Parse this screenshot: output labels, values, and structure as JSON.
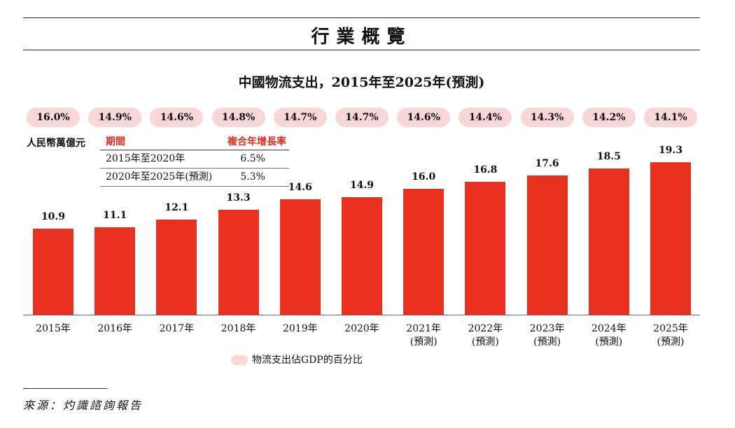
{
  "header": {
    "section_title": "行業概覽"
  },
  "chart_data": {
    "type": "bar",
    "title": "中國物流支出，2015年至2025年(預測)",
    "unit": "人民幣萬億元",
    "categories": [
      "2015年",
      "2016年",
      "2017年",
      "2018年",
      "2019年",
      "2020年",
      "2021年",
      "2022年",
      "2023年",
      "2024年",
      "2025年"
    ],
    "category_sublabels": [
      "",
      "",
      "",
      "",
      "",
      "",
      "(預測)",
      "(預測)",
      "(預測)",
      "(預測)",
      "(預測)"
    ],
    "values": [
      10.9,
      11.1,
      12.1,
      13.3,
      14.6,
      14.9,
      16.0,
      16.8,
      17.6,
      18.5,
      19.3
    ],
    "value_labels": [
      "10.9",
      "11.1",
      "12.1",
      "13.3",
      "14.6",
      "14.9",
      "16.0",
      "16.8",
      "17.6",
      "18.5",
      "19.3"
    ],
    "gdp_share": [
      "16.0%",
      "14.9%",
      "14.6%",
      "14.8%",
      "14.7%",
      "14.7%",
      "14.6%",
      "14.4%",
      "14.3%",
      "14.2%",
      "14.1%"
    ],
    "legend": "物流支出佔GDP的百分比",
    "bar_color": "#e8301f",
    "badge_color": "#fad7d7",
    "cagr_table": {
      "header": [
        "期間",
        "複合年增長率"
      ],
      "rows": [
        [
          "2015年至2020年",
          "6.5%"
        ],
        [
          "2020年至2025年(預測)",
          "5.3%"
        ]
      ]
    }
  },
  "footer": {
    "source": "來源：灼識諮詢報告"
  }
}
